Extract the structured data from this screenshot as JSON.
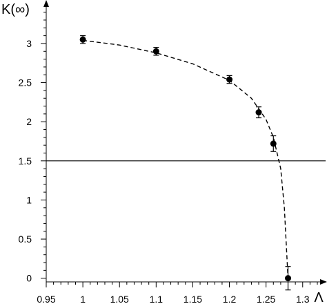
{
  "chart_data": {
    "type": "scatter",
    "title": "",
    "xlabel": "Λ",
    "ylabel": "K(∞)",
    "xlim": [
      0.95,
      1.32
    ],
    "ylim": [
      -0.1,
      3.45
    ],
    "xticks": [
      0.95,
      1,
      1.05,
      1.1,
      1.15,
      1.2,
      1.25,
      1.3
    ],
    "xtick_labels": [
      "0.95",
      "1",
      "1.05",
      "1.1",
      "1.15",
      "1.2",
      "1.25",
      "1.3"
    ],
    "yticks": [
      0,
      0.5,
      1,
      1.5,
      2,
      2.5,
      3
    ],
    "ytick_labels": [
      "0",
      "0.5",
      "1",
      "1.5",
      "2",
      "2.5",
      "3"
    ],
    "series": [
      {
        "style": "points-with-errorbars",
        "x": [
          1.0,
          1.1,
          1.2,
          1.24,
          1.26,
          1.28
        ],
        "y": [
          3.05,
          2.9,
          2.54,
          2.12,
          1.72,
          0.0
        ],
        "yerr": [
          0.05,
          0.05,
          0.05,
          0.07,
          0.1,
          0.15
        ]
      },
      {
        "style": "dashed-fit",
        "x": [
          1.0,
          1.05,
          1.1,
          1.15,
          1.2,
          1.23,
          1.25,
          1.26,
          1.27,
          1.275,
          1.28
        ],
        "y": [
          3.04,
          2.98,
          2.88,
          2.74,
          2.53,
          2.3,
          2.03,
          1.8,
          1.4,
          0.9,
          0.0
        ]
      }
    ],
    "reference_line": {
      "y": 1.5,
      "style": "solid-horizontal"
    },
    "grid": false,
    "legend": "none"
  }
}
